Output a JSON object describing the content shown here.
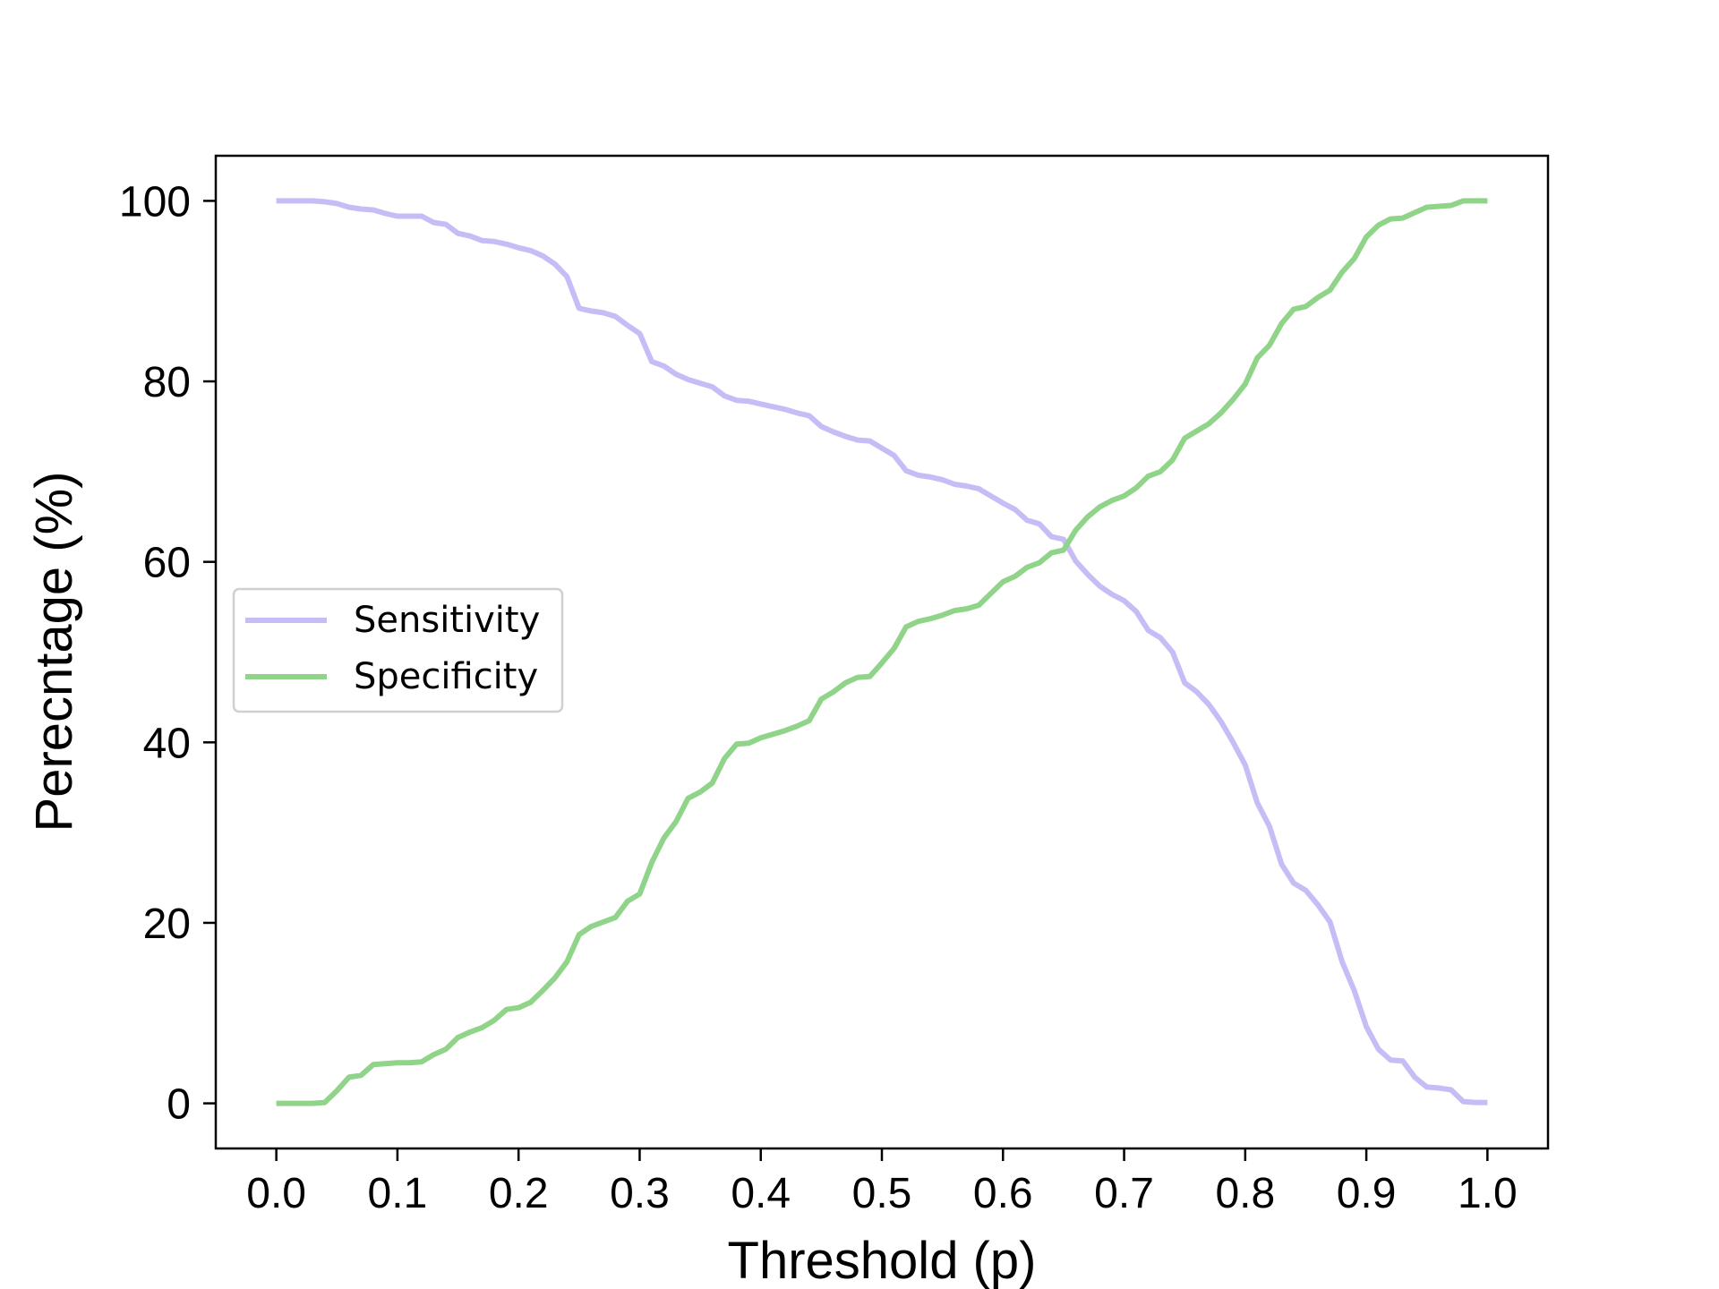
{
  "chart_data": {
    "type": "line",
    "xlabel": "Threshold (p)",
    "ylabel": "Perecntage (%)",
    "xlim": [
      -0.05,
      1.05
    ],
    "ylim": [
      -5,
      105
    ],
    "xticks": [
      "0.0",
      "0.1",
      "0.2",
      "0.3",
      "0.4",
      "0.5",
      "0.6",
      "0.7",
      "0.8",
      "0.9",
      "1.0"
    ],
    "yticks": [
      "0",
      "20",
      "40",
      "60",
      "80",
      "100"
    ],
    "grid": false,
    "legend_position": "center-left",
    "x": [
      0.0,
      0.01,
      0.02,
      0.03,
      0.04,
      0.05,
      0.06,
      0.07,
      0.08,
      0.09,
      0.1,
      0.11,
      0.12,
      0.13,
      0.14,
      0.15,
      0.16,
      0.17,
      0.18,
      0.19,
      0.2,
      0.21,
      0.22,
      0.23,
      0.24,
      0.25,
      0.26,
      0.27,
      0.28,
      0.29,
      0.3,
      0.31,
      0.32,
      0.33,
      0.34,
      0.35,
      0.36,
      0.37,
      0.38,
      0.39,
      0.4,
      0.41,
      0.42,
      0.43,
      0.44,
      0.45,
      0.46,
      0.47,
      0.48,
      0.49,
      0.5,
      0.51,
      0.52,
      0.53,
      0.54,
      0.55,
      0.56,
      0.57,
      0.58,
      0.59,
      0.6,
      0.61,
      0.62,
      0.63,
      0.64,
      0.65,
      0.66,
      0.67,
      0.68,
      0.69,
      0.7,
      0.71,
      0.72,
      0.73,
      0.74,
      0.75,
      0.76,
      0.77,
      0.78,
      0.79,
      0.8,
      0.81,
      0.82,
      0.83,
      0.84,
      0.85,
      0.86,
      0.87,
      0.88,
      0.89,
      0.9,
      0.91,
      0.92,
      0.93,
      0.94,
      0.95,
      0.96,
      0.97,
      0.98,
      0.99,
      1.0
    ],
    "series": [
      {
        "name": "Sensitivity",
        "color": "#c8bcf7",
        "values": [
          100,
          100,
          100,
          100,
          99.9,
          99.7,
          99.3,
          99.1,
          99.0,
          98.6,
          98.3,
          98.3,
          98.3,
          97.6,
          97.4,
          96.4,
          96.1,
          95.6,
          95.5,
          95.2,
          94.8,
          94.5,
          93.9,
          93.0,
          91.6,
          88.1,
          87.8,
          87.6,
          87.2,
          86.2,
          85.3,
          82.2,
          81.7,
          80.8,
          80.2,
          79.8,
          79.4,
          78.4,
          77.9,
          77.8,
          77.5,
          77.2,
          76.9,
          76.5,
          76.2,
          75.0,
          74.4,
          73.9,
          73.5,
          73.4,
          72.6,
          71.8,
          70.1,
          69.6,
          69.4,
          69.1,
          68.6,
          68.4,
          68.1,
          67.3,
          66.5,
          65.8,
          64.6,
          64.2,
          62.8,
          62.5,
          60.1,
          58.6,
          57.3,
          56.4,
          55.7,
          54.5,
          52.4,
          51.6,
          50.0,
          46.6,
          45.6,
          44.2,
          42.3,
          40.0,
          37.5,
          33.3,
          30.7,
          26.5,
          24.4,
          23.6,
          22.0,
          20.1,
          15.7,
          12.5,
          8.5,
          6.0,
          4.8,
          4.7,
          2.9,
          1.8,
          1.7,
          1.5,
          0.2,
          0.1,
          0.1
        ]
      },
      {
        "name": "Specificity",
        "color": "#90d48a",
        "values": [
          0,
          0,
          0,
          0,
          0.1,
          1.4,
          2.9,
          3.1,
          4.3,
          4.4,
          4.5,
          4.5,
          4.6,
          5.4,
          6.0,
          7.3,
          7.9,
          8.4,
          9.2,
          10.4,
          10.6,
          11.2,
          12.5,
          13.9,
          15.7,
          18.7,
          19.6,
          20.1,
          20.6,
          22.4,
          23.2,
          26.7,
          29.4,
          31.2,
          33.8,
          34.5,
          35.5,
          38.2,
          39.8,
          39.9,
          40.5,
          40.9,
          41.3,
          41.8,
          42.4,
          44.8,
          45.6,
          46.6,
          47.2,
          47.3,
          48.8,
          50.4,
          52.8,
          53.4,
          53.7,
          54.1,
          54.6,
          54.8,
          55.2,
          56.5,
          57.8,
          58.4,
          59.4,
          59.9,
          61.0,
          61.3,
          63.5,
          65.0,
          66.1,
          66.8,
          67.3,
          68.2,
          69.5,
          70.0,
          71.3,
          73.7,
          74.5,
          75.3,
          76.5,
          78.0,
          79.7,
          82.6,
          84.0,
          86.4,
          88.0,
          88.3,
          89.3,
          90.1,
          92.1,
          93.6,
          96.0,
          97.3,
          98.0,
          98.1,
          98.7,
          99.3,
          99.4,
          99.5,
          100,
          100,
          100
        ]
      }
    ]
  }
}
